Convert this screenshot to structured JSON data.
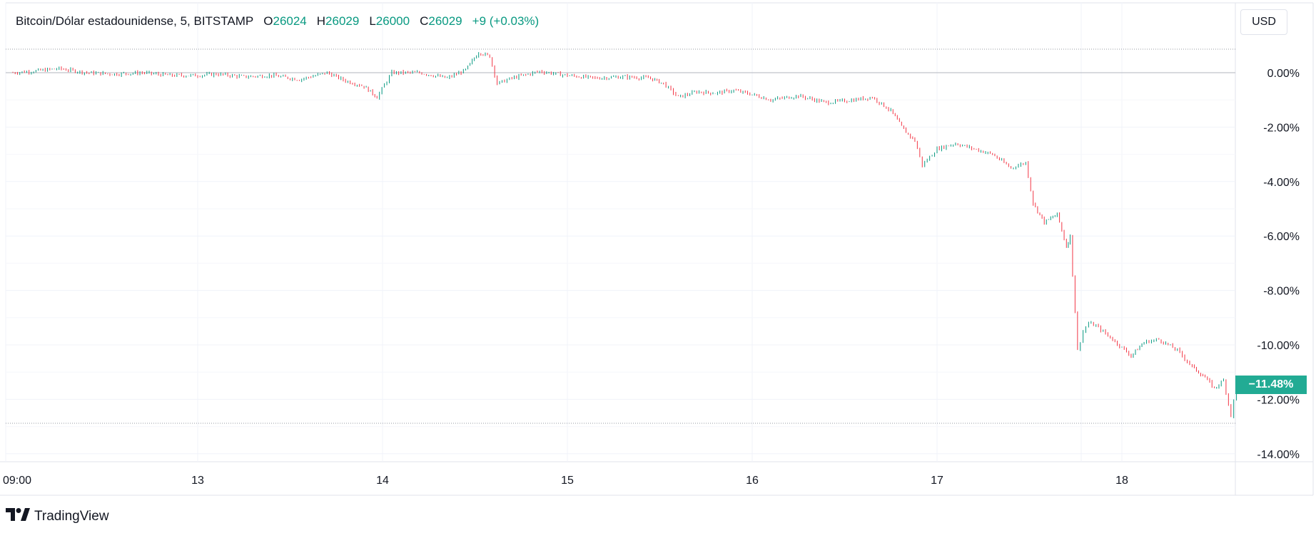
{
  "legend": {
    "symbol": "Bitcoin/Dólar estadounidense, 5, BITSTAMP",
    "open_label": "O",
    "open_value": "26024",
    "high_label": "H",
    "high_value": "26029",
    "low_label": "L",
    "low_value": "26000",
    "close_label": "C",
    "close_value": "26029",
    "change": "+9 (+0.03%)"
  },
  "currency_button": "USD",
  "current_price_badge": "−11.48%",
  "brand": "TradingView",
  "colors": {
    "up": "#089981",
    "down": "#f23645",
    "badge": "#22ab94",
    "grid": "#f0f3fa",
    "zero_line": "#b2b5be"
  },
  "chart_data": {
    "type": "line",
    "title": "Bitcoin/Dólar estadounidense, 5, BITSTAMP",
    "xlabel": "",
    "ylabel": "",
    "y_scale": "percent",
    "ylim": [
      -14.0,
      1.0
    ],
    "y_ticks": [
      "0.00%",
      "-2.00%",
      "-4.00%",
      "-6.00%",
      "-8.00%",
      "-10.00%",
      "-12.00%",
      "-14.00%"
    ],
    "y_tick_values": [
      0,
      -2,
      -4,
      -6,
      -8,
      -10,
      -12,
      -14
    ],
    "x_ticks": [
      "09:00",
      "13",
      "14",
      "15",
      "16",
      "17",
      "18"
    ],
    "x_tick_values": [
      12.0,
      13.0,
      14.0,
      15.0,
      16.0,
      17.0,
      18.0
    ],
    "xlim": [
      12.0,
      18.97
    ],
    "high_line_pct": 0.85,
    "low_line_pct": -12.9,
    "series": [
      {
        "x": [
          12.0,
          12.1,
          12.25,
          12.4,
          12.55,
          12.7,
          12.85,
          13.0,
          13.1,
          13.25,
          13.4,
          13.55,
          13.7,
          13.8,
          13.9,
          13.97,
          14.05,
          14.2,
          14.35,
          14.45,
          14.52,
          14.58,
          14.62,
          14.7,
          14.85,
          15.0,
          15.15,
          15.3,
          15.45,
          15.52,
          15.6,
          15.7,
          15.8,
          15.9,
          16.0,
          16.1,
          16.25,
          16.4,
          16.55,
          16.65,
          16.75,
          16.82,
          16.88,
          16.92,
          17.0,
          17.1,
          17.2,
          17.3,
          17.4,
          17.48,
          17.52,
          17.58,
          17.65,
          17.7,
          17.72,
          17.76,
          17.79,
          17.82,
          17.86,
          17.95,
          18.05,
          18.12,
          18.2,
          18.3,
          18.38,
          18.45,
          18.5,
          18.55,
          18.59,
          18.62,
          18.66
        ],
        "y": [
          0.0,
          0.05,
          0.15,
          0.0,
          -0.05,
          0.0,
          -0.1,
          -0.1,
          -0.05,
          -0.15,
          -0.1,
          -0.25,
          0.0,
          -0.3,
          -0.5,
          -0.9,
          0.0,
          0.0,
          -0.2,
          0.1,
          0.75,
          0.6,
          -0.4,
          -0.2,
          0.05,
          -0.1,
          -0.2,
          -0.15,
          -0.2,
          -0.4,
          -0.9,
          -0.7,
          -0.75,
          -0.65,
          -0.8,
          -1.0,
          -0.85,
          -1.1,
          -1.0,
          -0.9,
          -1.4,
          -2.1,
          -2.5,
          -3.4,
          -2.8,
          -2.6,
          -2.8,
          -3.0,
          -3.5,
          -3.3,
          -4.8,
          -5.5,
          -5.2,
          -6.4,
          -6.0,
          -10.2,
          -9.5,
          -9.2,
          -9.3,
          -9.8,
          -10.4,
          -9.9,
          -9.8,
          -10.2,
          -10.8,
          -11.2,
          -11.6,
          -11.3,
          -12.6,
          -11.5,
          -11.48
        ],
        "name": ""
      }
    ]
  }
}
